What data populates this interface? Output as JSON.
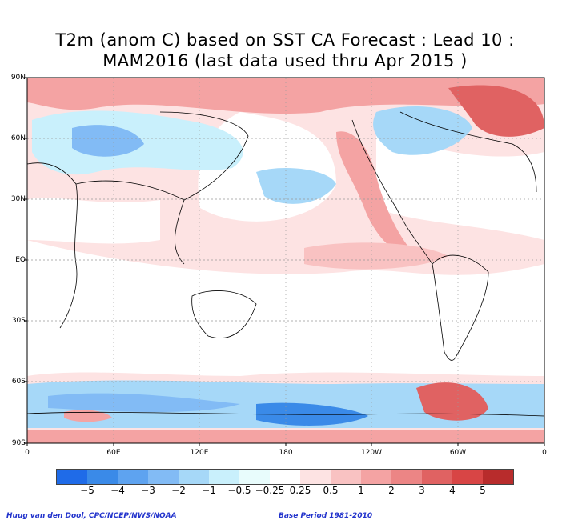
{
  "title_line1": "T2m (anom C) based on SST CA Forecast : Lead 10 :",
  "title_line2": "MAM2016 (last data used thru Apr 2015 )",
  "lat_labels": [
    "90N",
    "60N",
    "30N",
    "EQ",
    "30S",
    "60S",
    "90S"
  ],
  "lon_labels": [
    "0",
    "60E",
    "120E",
    "180",
    "120W",
    "60W",
    "0"
  ],
  "colorbar": {
    "colors": [
      "#1f6be8",
      "#3a8ae8",
      "#5ea3f0",
      "#82bbf5",
      "#a6d8f8",
      "#c9f0fc",
      "#e8fcfc",
      "#ffffff",
      "#fde3e3",
      "#f9c2c2",
      "#f4a3a3",
      "#ec8585",
      "#e06262",
      "#d84545",
      "#b82c2c"
    ],
    "labels": [
      "−5",
      "−4",
      "−3",
      "−2",
      "−1",
      "−0.5",
      "−0.25",
      "0.25",
      "0.5",
      "1",
      "2",
      "3",
      "4",
      "5"
    ]
  },
  "credit_left": "Huug van den Dool, CPC/NCEP/NWS/NOAA",
  "credit_right": "Base Period 1981-2010",
  "map_colors": {
    "ocean_bg": "#ffffff",
    "warm_light": "#fde3e3",
    "warm_mid": "#f4a3a3",
    "warm_strong": "#e06262",
    "cool_light": "#c9f0fc",
    "cool_mid": "#82bbf5",
    "cool_strong": "#3a8ae8",
    "coast": "#000000"
  }
}
